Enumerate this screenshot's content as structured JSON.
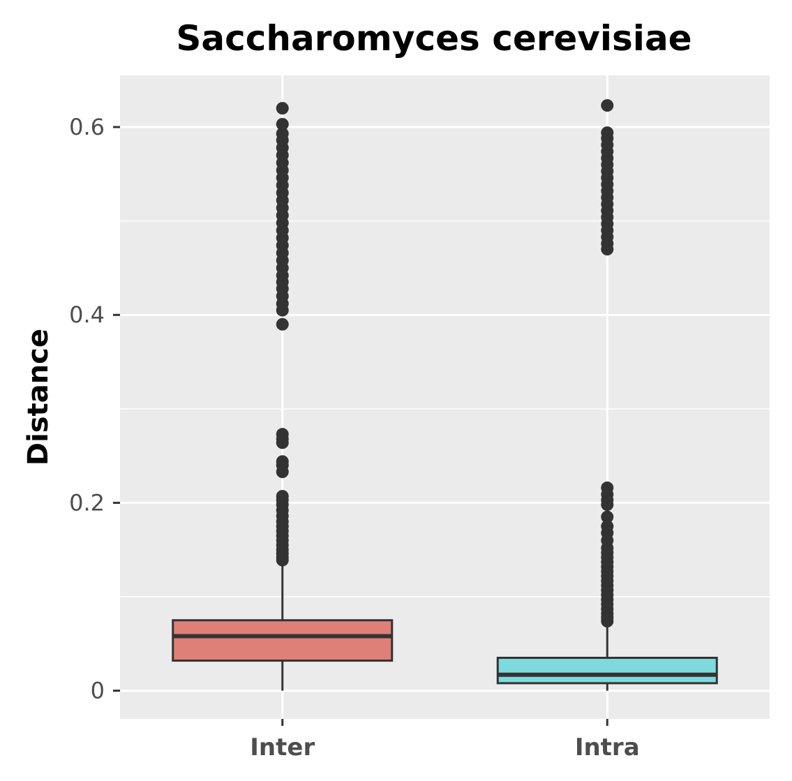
{
  "chart_data": {
    "type": "box",
    "title": "Saccharomyces cerevisiae",
    "xlabel": "",
    "ylabel": "Distance",
    "ylim": [
      -0.03,
      0.655
    ],
    "y_ticks": [
      0,
      0.2,
      0.4,
      0.6
    ],
    "y_tick_labels": [
      "0",
      "0.2",
      "0.4",
      "0.6"
    ],
    "grid": true,
    "categories": [
      "Inter",
      "Intra"
    ],
    "boxes": [
      {
        "category": "Inter",
        "color": "#e07f78",
        "min": 0.0,
        "q1": 0.032,
        "median": 0.058,
        "q3": 0.075,
        "whisker_high": 0.137,
        "outliers": [
          0.139,
          0.142,
          0.146,
          0.15,
          0.155,
          0.16,
          0.165,
          0.17,
          0.175,
          0.18,
          0.186,
          0.192,
          0.198,
          0.203,
          0.207,
          0.233,
          0.24,
          0.244,
          0.264,
          0.268,
          0.273,
          0.39,
          0.405,
          0.412,
          0.42,
          0.428,
          0.435,
          0.442,
          0.45,
          0.458,
          0.466,
          0.474,
          0.482,
          0.49,
          0.498,
          0.506,
          0.514,
          0.522,
          0.53,
          0.538,
          0.546,
          0.554,
          0.562,
          0.57,
          0.578,
          0.586,
          0.593,
          0.603,
          0.62
        ]
      },
      {
        "category": "Intra",
        "color": "#7edadd",
        "min": 0.0,
        "q1": 0.008,
        "median": 0.017,
        "q3": 0.035,
        "whisker_high": 0.073,
        "outliers": [
          0.074,
          0.078,
          0.082,
          0.087,
          0.092,
          0.097,
          0.102,
          0.107,
          0.112,
          0.117,
          0.122,
          0.127,
          0.132,
          0.137,
          0.142,
          0.147,
          0.152,
          0.16,
          0.168,
          0.175,
          0.185,
          0.198,
          0.203,
          0.209,
          0.216,
          0.47,
          0.476,
          0.483,
          0.49,
          0.497,
          0.504,
          0.511,
          0.518,
          0.525,
          0.532,
          0.539,
          0.546,
          0.553,
          0.56,
          0.567,
          0.574,
          0.581,
          0.588,
          0.594,
          0.623
        ]
      }
    ]
  },
  "colors": {
    "panel_background": "#ebebeb",
    "grid": "#ffffff",
    "box_outline": "#333333",
    "outlier": "#333333"
  }
}
